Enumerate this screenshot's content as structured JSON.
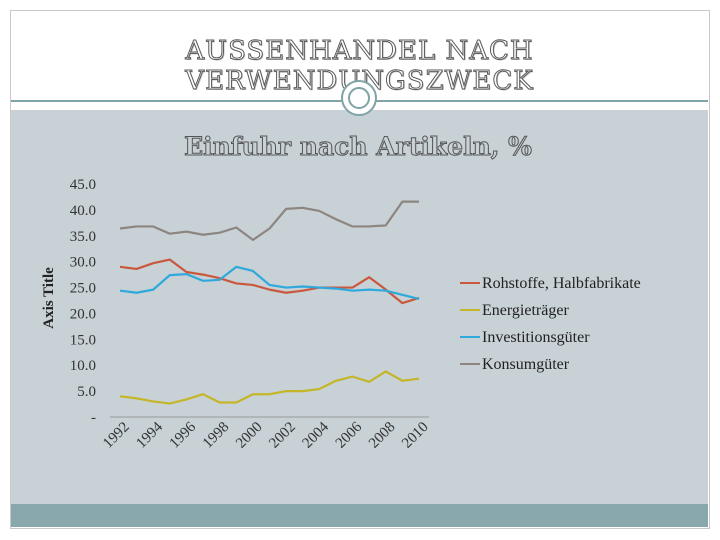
{
  "slide": {
    "title": "Aussenhandel nach Verwendungszweck"
  },
  "chart_data": {
    "type": "line",
    "title": "Einfuhr nach Artikeln, %",
    "xlabel": "",
    "ylabel": "Axis Title",
    "x": [
      1992,
      1993,
      1994,
      1995,
      1996,
      1997,
      1998,
      1999,
      2000,
      2001,
      2002,
      2003,
      2004,
      2005,
      2006,
      2007,
      2008,
      2009,
      2010
    ],
    "x_tick_labels": [
      "1992",
      "1994",
      "1996",
      "1998",
      "2000",
      "2002",
      "2004",
      "2006",
      "2008",
      "2010"
    ],
    "y_tick_labels": [
      "-",
      "5.0",
      "10.0",
      "15.0",
      "20.0",
      "25.0",
      "30.0",
      "35.0",
      "40.0",
      "45.0"
    ],
    "ylim": [
      0,
      45
    ],
    "grid": false,
    "legend_position": "right",
    "series": [
      {
        "name": "Rohstoffe, Halbfabrikate",
        "color": "#c9583e",
        "values": [
          29.0,
          28.6,
          29.7,
          30.4,
          28.0,
          27.5,
          26.8,
          25.8,
          25.5,
          24.6,
          24.0,
          24.4,
          25.0,
          25.0,
          25.0,
          27.0,
          24.6,
          22.0,
          23.0
        ]
      },
      {
        "name": "Energieträger",
        "color": "#c4b628",
        "values": [
          4.0,
          3.6,
          3.0,
          2.6,
          3.4,
          4.4,
          2.8,
          2.8,
          4.4,
          4.4,
          5.0,
          5.0,
          5.4,
          7.0,
          7.8,
          6.8,
          8.8,
          7.0,
          7.4
        ]
      },
      {
        "name": "Investitionsgüter",
        "color": "#2fa9dc",
        "values": [
          24.4,
          24.0,
          24.6,
          27.4,
          27.6,
          26.3,
          26.5,
          29.0,
          28.2,
          25.5,
          25.0,
          25.2,
          25.0,
          24.8,
          24.4,
          24.6,
          24.4,
          23.6,
          22.8
        ]
      },
      {
        "name": "Konsumgüter",
        "color": "#8c8580",
        "values": [
          36.4,
          36.8,
          36.8,
          35.4,
          35.8,
          35.2,
          35.6,
          36.6,
          34.2,
          36.4,
          40.2,
          40.4,
          39.8,
          38.2,
          36.8,
          36.8,
          37.0,
          41.6,
          41.6
        ]
      }
    ]
  }
}
